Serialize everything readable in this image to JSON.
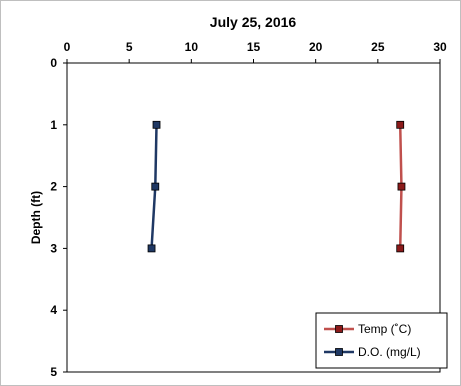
{
  "chart_data": {
    "type": "line",
    "title": "July 25, 2016",
    "ylabel": "Depth (ft)",
    "xlabel": "",
    "xlim": [
      0,
      30
    ],
    "ylim": [
      0,
      5
    ],
    "y_inverted": true,
    "x_axis_position": "top",
    "x_ticks": [
      0,
      5,
      10,
      15,
      20,
      25,
      30
    ],
    "y_ticks": [
      0,
      1,
      2,
      3,
      4,
      5
    ],
    "grid": false,
    "legend_position": "bottom-right",
    "series": [
      {
        "name": "Temp (˚C)",
        "color": "#c0504d",
        "marker_color": "#8b1a1a",
        "points": [
          {
            "x": 26.8,
            "y": 1
          },
          {
            "x": 26.9,
            "y": 2
          },
          {
            "x": 26.8,
            "y": 3
          }
        ]
      },
      {
        "name": "D.O. (mg/L)",
        "color": "#1f3864",
        "marker_color": "#1f3864",
        "points": [
          {
            "x": 7.2,
            "y": 1
          },
          {
            "x": 7.1,
            "y": 2
          },
          {
            "x": 6.8,
            "y": 3
          }
        ]
      }
    ]
  }
}
